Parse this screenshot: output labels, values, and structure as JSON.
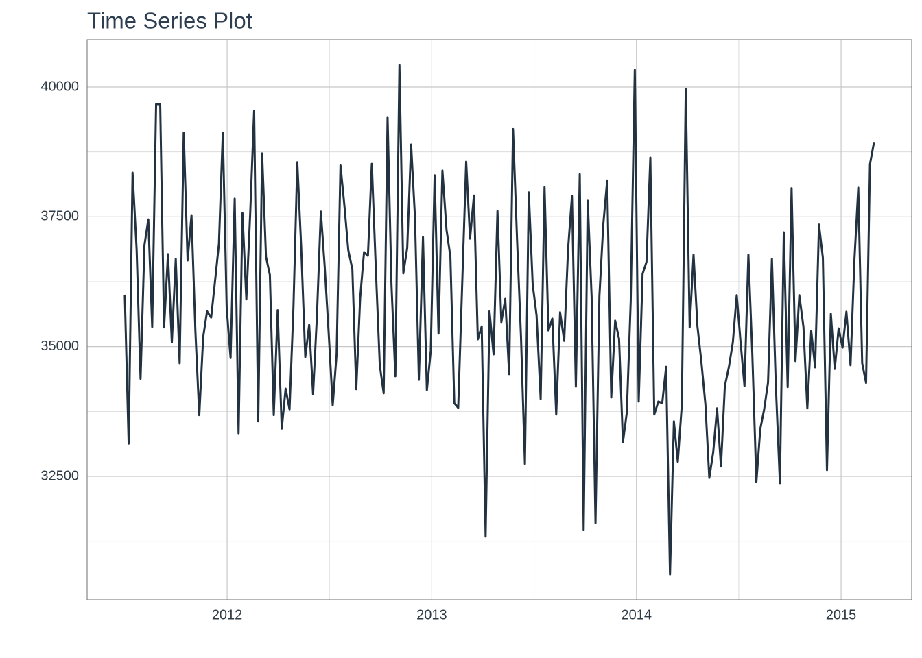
{
  "chart_data": {
    "type": "line",
    "title": "Time Series Plot",
    "color": "#233240",
    "grid": true,
    "xlim": [
      2011.316,
      2015.345
    ],
    "xticks": [
      2012,
      2013,
      2014,
      2015
    ],
    "xminor": [
      2012.5,
      2013.5,
      2014.5
    ],
    "ylim": [
      30123,
      40911
    ],
    "yticks": [
      32500,
      35000,
      37500,
      40000
    ],
    "yminor": [
      31250,
      33750,
      36250,
      38750
    ],
    "x": [
      2011.5,
      2011.519,
      2011.538,
      2011.558,
      2011.577,
      2011.596,
      2011.615,
      2011.634,
      2011.653,
      2011.673,
      2011.692,
      2011.711,
      2011.73,
      2011.749,
      2011.768,
      2011.788,
      2011.807,
      2011.826,
      2011.845,
      2011.864,
      2011.883,
      2011.902,
      2011.922,
      2011.941,
      2011.96,
      2011.979,
      2011.998,
      2012.017,
      2012.037,
      2012.056,
      2012.075,
      2012.094,
      2012.113,
      2012.132,
      2012.152,
      2012.171,
      2012.19,
      2012.209,
      2012.228,
      2012.247,
      2012.267,
      2012.286,
      2012.305,
      2012.324,
      2012.343,
      2012.362,
      2012.382,
      2012.401,
      2012.42,
      2012.439,
      2012.458,
      2012.477,
      2012.497,
      2012.516,
      2012.535,
      2012.554,
      2012.573,
      2012.592,
      2012.612,
      2012.631,
      2012.65,
      2012.669,
      2012.688,
      2012.707,
      2012.727,
      2012.746,
      2012.765,
      2012.784,
      2012.803,
      2012.822,
      2012.842,
      2012.861,
      2012.88,
      2012.899,
      2012.918,
      2012.937,
      2012.957,
      2012.976,
      2012.995,
      2013.014,
      2013.033,
      2013.052,
      2013.072,
      2013.091,
      2013.11,
      2013.129,
      2013.148,
      2013.168,
      2013.187,
      2013.206,
      2013.225,
      2013.244,
      2013.263,
      2013.282,
      2013.302,
      2013.321,
      2013.34,
      2013.359,
      2013.378,
      2013.397,
      2013.417,
      2013.436,
      2013.455,
      2013.474,
      2013.493,
      2013.512,
      2013.532,
      2013.551,
      2013.57,
      2013.589,
      2013.608,
      2013.627,
      2013.647,
      2013.666,
      2013.685,
      2013.704,
      2013.723,
      2013.742,
      2013.762,
      2013.781,
      2013.8,
      2013.819,
      2013.838,
      2013.857,
      2013.877,
      2013.896,
      2013.915,
      2013.934,
      2013.953,
      2013.972,
      2013.992,
      2014.011,
      2014.03,
      2014.049,
      2014.068,
      2014.087,
      2014.107,
      2014.126,
      2014.145,
      2014.164,
      2014.183,
      2014.202,
      2014.222,
      2014.241,
      2014.26,
      2014.279,
      2014.298,
      2014.317,
      2014.337,
      2014.356,
      2014.375,
      2014.394,
      2014.413,
      2014.432,
      2014.452,
      2014.471,
      2014.49,
      2014.509,
      2014.528,
      2014.547,
      2014.566,
      2014.586,
      2014.605,
      2014.624,
      2014.643,
      2014.662,
      2014.681,
      2014.701,
      2014.72,
      2014.739,
      2014.758,
      2014.777,
      2014.796,
      2014.816,
      2014.835,
      2014.854,
      2014.873,
      2014.892,
      2014.911,
      2014.931,
      2014.95,
      2014.969,
      2014.988,
      2015.007,
      2015.026,
      2015.046,
      2015.065,
      2015.084,
      2015.103,
      2015.122,
      2015.141,
      2015.161
    ],
    "values": [
      36000,
      33130,
      38350,
      36860,
      34380,
      36950,
      37450,
      35380,
      39670,
      39670,
      35370,
      36780,
      35080,
      36690,
      34680,
      39120,
      36660,
      37530,
      35300,
      33680,
      35180,
      35680,
      35560,
      36260,
      36980,
      39120,
      35740,
      34780,
      37850,
      33330,
      37570,
      35910,
      37580,
      39540,
      33560,
      38720,
      36730,
      36380,
      33680,
      35700,
      33420,
      34190,
      33790,
      35740,
      38550,
      36920,
      34800,
      35420,
      34080,
      35600,
      37600,
      36530,
      35210,
      33870,
      34850,
      38490,
      37720,
      36860,
      36490,
      34180,
      35930,
      36820,
      36750,
      38520,
      36460,
      34640,
      34100,
      39420,
      36200,
      34430,
      40420,
      36410,
      36900,
      38890,
      37480,
      34360,
      37110,
      34160,
      34920,
      38300,
      35250,
      38390,
      37250,
      36730,
      33910,
      33820,
      36130,
      38560,
      37080,
      37910,
      35140,
      35390,
      31340,
      35680,
      34850,
      37610,
      35470,
      35920,
      34470,
      39190,
      37030,
      35180,
      32740,
      37970,
      36200,
      35600,
      33990,
      38070,
      35310,
      35540,
      33690,
      35660,
      35110,
      36880,
      37900,
      34230,
      38320,
      31470,
      37810,
      35960,
      31600,
      35970,
      37350,
      38200,
      34020,
      35500,
      35150,
      33160,
      33730,
      35870,
      40330,
      33940,
      36400,
      36630,
      38640,
      33690,
      33940,
      33910,
      34610,
      30610,
      33560,
      32780,
      33890,
      39960,
      35370,
      36770,
      35390,
      34720,
      33890,
      32470,
      32960,
      33810,
      32690,
      34240,
      34610,
      35080,
      35990,
      35080,
      34240,
      36770,
      34880,
      32390,
      33410,
      33790,
      34310,
      36690,
      34260,
      32370,
      37200,
      34220,
      38050,
      34720,
      35990,
      35380,
      33810,
      35300,
      34600,
      37350,
      36710,
      32620,
      35630,
      34570,
      35350,
      34980,
      35670,
      34640,
      36660,
      38060,
      34680,
      34300,
      38510,
      38940
    ]
  }
}
